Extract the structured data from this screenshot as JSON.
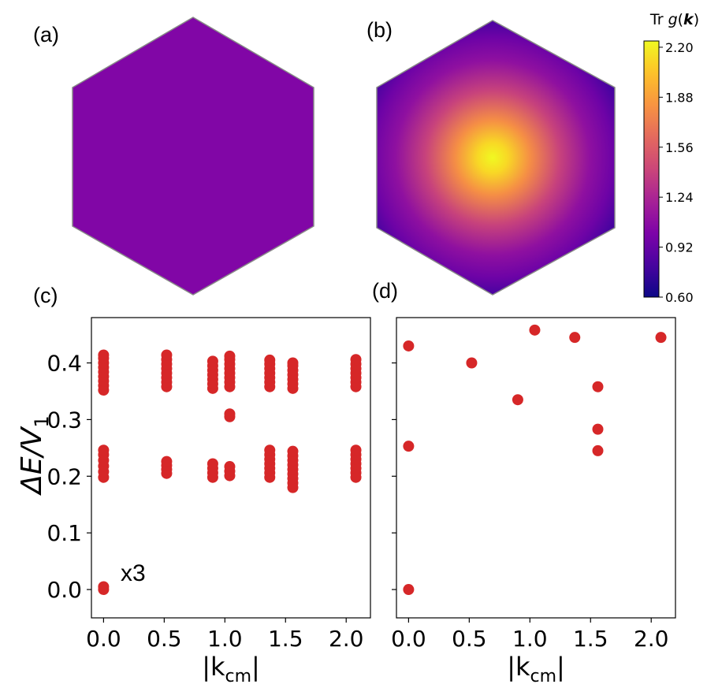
{
  "panels": {
    "a": "(a)",
    "b": "(b)",
    "c": "(c)",
    "d": "(d)"
  },
  "colorbar": {
    "title_prefix": "Tr ",
    "title_func": "g",
    "title_arg": "k",
    "ticks": [
      "0.60",
      "0.92",
      "1.24",
      "1.56",
      "1.88",
      "2.20"
    ],
    "range": [
      0.6,
      2.24
    ],
    "colormap": "plasma"
  },
  "heatmaps": {
    "a": {
      "uniform_value": 1.03
    },
    "b": {
      "center_value": 2.24,
      "corner_value": 0.72,
      "outer_flat_value": 0.95
    }
  },
  "annotation": "x3",
  "colors": {
    "marker": "#d62728"
  },
  "chart_data": [
    {
      "type": "scatter",
      "panel": "c",
      "xlabel_main": "|k",
      "xlabel_sub": "cm",
      "xlabel_end": "|",
      "ylabel_main": "ΔE/V",
      "ylabel_sub": "1",
      "xlim": [
        -0.1,
        2.2
      ],
      "ylim": [
        -0.05,
        0.48
      ],
      "xticks": [
        "0.0",
        "0.5",
        "1.0",
        "1.5",
        "2.0"
      ],
      "yticks": [
        "0.0",
        "0.1",
        "0.2",
        "0.3",
        "0.4"
      ],
      "points": [
        [
          0.0,
          0.0
        ],
        [
          0.0,
          0.005
        ],
        [
          0.0,
          0.198
        ],
        [
          0.0,
          0.208
        ],
        [
          0.0,
          0.218
        ],
        [
          0.0,
          0.228
        ],
        [
          0.0,
          0.238
        ],
        [
          0.0,
          0.246
        ],
        [
          0.0,
          0.352
        ],
        [
          0.0,
          0.36
        ],
        [
          0.0,
          0.368
        ],
        [
          0.0,
          0.376
        ],
        [
          0.0,
          0.384
        ],
        [
          0.0,
          0.392
        ],
        [
          0.0,
          0.4
        ],
        [
          0.0,
          0.408
        ],
        [
          0.0,
          0.414
        ],
        [
          0.52,
          0.205
        ],
        [
          0.52,
          0.212
        ],
        [
          0.52,
          0.219
        ],
        [
          0.52,
          0.226
        ],
        [
          0.52,
          0.358
        ],
        [
          0.52,
          0.366
        ],
        [
          0.52,
          0.374
        ],
        [
          0.52,
          0.382
        ],
        [
          0.52,
          0.39
        ],
        [
          0.52,
          0.398
        ],
        [
          0.52,
          0.406
        ],
        [
          0.52,
          0.414
        ],
        [
          0.9,
          0.198
        ],
        [
          0.9,
          0.206
        ],
        [
          0.9,
          0.214
        ],
        [
          0.9,
          0.222
        ],
        [
          0.9,
          0.355
        ],
        [
          0.9,
          0.363
        ],
        [
          0.9,
          0.371
        ],
        [
          0.9,
          0.379
        ],
        [
          0.9,
          0.387
        ],
        [
          0.9,
          0.395
        ],
        [
          0.9,
          0.403
        ],
        [
          1.04,
          0.201
        ],
        [
          1.04,
          0.209
        ],
        [
          1.04,
          0.217
        ],
        [
          1.04,
          0.305
        ],
        [
          1.04,
          0.31
        ],
        [
          1.04,
          0.358
        ],
        [
          1.04,
          0.366
        ],
        [
          1.04,
          0.374
        ],
        [
          1.04,
          0.382
        ],
        [
          1.04,
          0.39
        ],
        [
          1.04,
          0.398
        ],
        [
          1.04,
          0.406
        ],
        [
          1.04,
          0.412
        ],
        [
          1.37,
          0.198
        ],
        [
          1.37,
          0.206
        ],
        [
          1.37,
          0.214
        ],
        [
          1.37,
          0.222
        ],
        [
          1.37,
          0.23
        ],
        [
          1.37,
          0.238
        ],
        [
          1.37,
          0.246
        ],
        [
          1.37,
          0.358
        ],
        [
          1.37,
          0.366
        ],
        [
          1.37,
          0.374
        ],
        [
          1.37,
          0.382
        ],
        [
          1.37,
          0.39
        ],
        [
          1.37,
          0.398
        ],
        [
          1.37,
          0.405
        ],
        [
          1.56,
          0.18
        ],
        [
          1.56,
          0.188
        ],
        [
          1.56,
          0.196
        ],
        [
          1.56,
          0.204
        ],
        [
          1.56,
          0.212
        ],
        [
          1.56,
          0.22
        ],
        [
          1.56,
          0.228
        ],
        [
          1.56,
          0.236
        ],
        [
          1.56,
          0.244
        ],
        [
          1.56,
          0.355
        ],
        [
          1.56,
          0.363
        ],
        [
          1.56,
          0.371
        ],
        [
          1.56,
          0.379
        ],
        [
          1.56,
          0.387
        ],
        [
          1.56,
          0.395
        ],
        [
          1.56,
          0.4
        ],
        [
          2.08,
          0.198
        ],
        [
          2.08,
          0.206
        ],
        [
          2.08,
          0.214
        ],
        [
          2.08,
          0.222
        ],
        [
          2.08,
          0.23
        ],
        [
          2.08,
          0.238
        ],
        [
          2.08,
          0.246
        ],
        [
          2.08,
          0.358
        ],
        [
          2.08,
          0.366
        ],
        [
          2.08,
          0.374
        ],
        [
          2.08,
          0.382
        ],
        [
          2.08,
          0.39
        ],
        [
          2.08,
          0.398
        ],
        [
          2.08,
          0.406
        ]
      ]
    },
    {
      "type": "scatter",
      "panel": "d",
      "xlabel_main": "|k",
      "xlabel_sub": "cm",
      "xlabel_end": "|",
      "xlim": [
        -0.1,
        2.2
      ],
      "ylim": [
        -0.05,
        0.48
      ],
      "xticks": [
        "0.0",
        "0.5",
        "1.0",
        "1.5",
        "2.0"
      ],
      "points": [
        [
          0.0,
          0.0
        ],
        [
          0.0,
          0.253
        ],
        [
          0.0,
          0.43
        ],
        [
          0.52,
          0.4
        ],
        [
          0.9,
          0.335
        ],
        [
          1.04,
          0.458
        ],
        [
          1.37,
          0.445
        ],
        [
          1.56,
          0.358
        ],
        [
          1.56,
          0.283
        ],
        [
          1.56,
          0.245
        ],
        [
          2.08,
          0.445
        ]
      ]
    }
  ]
}
